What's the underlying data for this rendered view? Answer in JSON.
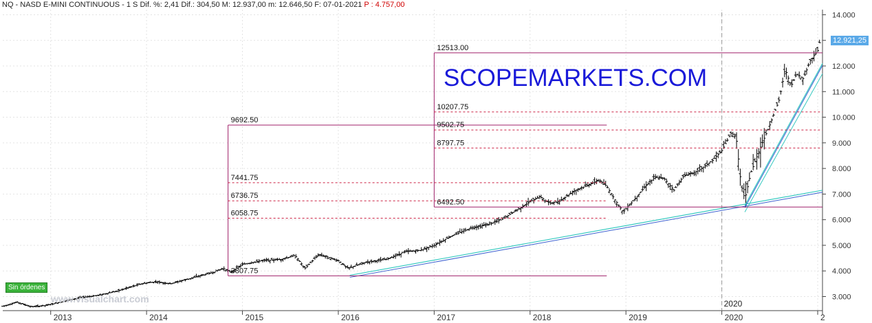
{
  "header": {
    "text": "NQ - NASD E-MINI CONTINUOUS - 1 S  Dif. %: 2,41  Dif.: 304,50  M: 12.937,00  m: 12.646,50  F: 07-01-2021",
    "p_value": "P : 4.757,00"
  },
  "brand": "SCOPEMARKETS.COM",
  "watermark": "www.visualchart.com",
  "badge": "Sin órdenes",
  "last_price": "12.921,25",
  "colors": {
    "candle": "#000000",
    "level_line": "#cc2244",
    "box": "#a0206a",
    "trend_blue": "#3a5fd0",
    "trend_teal": "#36c9c0",
    "grid": "#e3e3e3",
    "axis_text": "#333333",
    "last_price_bg": "#5aa9e8"
  },
  "chart_data": {
    "type": "bar",
    "title": "NQ - NASD E-MINI CONTINUOUS - 1 S",
    "y_axis": {
      "ticks": [
        "14.000",
        "13.000",
        "12.000",
        "11.000",
        "10.000",
        "9.000",
        "8.000",
        "7.000",
        "6.000",
        "5.000",
        "4.000",
        "3.000"
      ],
      "tick_values": [
        14000,
        13000,
        12000,
        11000,
        10000,
        9000,
        8000,
        7000,
        6000,
        5000,
        4000,
        3000
      ],
      "range": [
        2450,
        14200
      ]
    },
    "x_axis": {
      "ticks": [
        "2013",
        "2014",
        "2015",
        "2016",
        "2017",
        "2018",
        "2019",
        "2020",
        "2"
      ],
      "range": [
        2012.5,
        2021.05
      ]
    },
    "price_path": [
      [
        2012.5,
        2620
      ],
      [
        2012.65,
        2780
      ],
      [
        2012.8,
        2600
      ],
      [
        2012.95,
        2650
      ],
      [
        2013.1,
        2780
      ],
      [
        2013.3,
        2950
      ],
      [
        2013.5,
        3050
      ],
      [
        2013.7,
        3220
      ],
      [
        2013.95,
        3500
      ],
      [
        2014.1,
        3580
      ],
      [
        2014.25,
        3500
      ],
      [
        2014.4,
        3650
      ],
      [
        2014.55,
        3800
      ],
      [
        2014.7,
        3950
      ],
      [
        2014.8,
        4100
      ],
      [
        2014.88,
        3950
      ],
      [
        2015.0,
        4250
      ],
      [
        2015.2,
        4400
      ],
      [
        2015.4,
        4450
      ],
      [
        2015.55,
        4600
      ],
      [
        2015.65,
        4100
      ],
      [
        2015.8,
        4650
      ],
      [
        2016.0,
        4400
      ],
      [
        2016.1,
        4100
      ],
      [
        2016.3,
        4350
      ],
      [
        2016.5,
        4450
      ],
      [
        2016.7,
        4750
      ],
      [
        2016.85,
        4800
      ],
      [
        2017.0,
        5000
      ],
      [
        2017.2,
        5400
      ],
      [
        2017.4,
        5700
      ],
      [
        2017.55,
        5800
      ],
      [
        2017.7,
        6000
      ],
      [
        2017.85,
        6350
      ],
      [
        2018.0,
        6700
      ],
      [
        2018.1,
        6900
      ],
      [
        2018.2,
        6650
      ],
      [
        2018.3,
        6700
      ],
      [
        2018.45,
        7100
      ],
      [
        2018.6,
        7350
      ],
      [
        2018.72,
        7550
      ],
      [
        2018.8,
        7300
      ],
      [
        2018.88,
        6800
      ],
      [
        2018.97,
        6300
      ],
      [
        2019.08,
        6750
      ],
      [
        2019.2,
        7300
      ],
      [
        2019.3,
        7650
      ],
      [
        2019.4,
        7600
      ],
      [
        2019.5,
        7150
      ],
      [
        2019.6,
        7700
      ],
      [
        2019.75,
        7900
      ],
      [
        2019.9,
        8300
      ],
      [
        2020.0,
        8700
      ],
      [
        2020.1,
        9400
      ],
      [
        2020.15,
        9200
      ],
      [
        2020.2,
        7400
      ],
      [
        2020.24,
        6800
      ],
      [
        2020.3,
        7800
      ],
      [
        2020.4,
        8800
      ],
      [
        2020.5,
        9700
      ],
      [
        2020.6,
        10700
      ],
      [
        2020.66,
        11900
      ],
      [
        2020.72,
        11200
      ],
      [
        2020.78,
        11700
      ],
      [
        2020.85,
        11500
      ],
      [
        2020.92,
        12200
      ],
      [
        2021.0,
        12600
      ],
      [
        2021.02,
        12921
      ]
    ],
    "levels": [
      {
        "label": "12513.00",
        "value": 12513
      },
      {
        "label": "10207.75",
        "value": 10207.75
      },
      {
        "label": "9502.75",
        "value": 9502.75
      },
      {
        "label": "8797.75",
        "value": 8797.75
      },
      {
        "label": "6492.50",
        "value": 6492.5
      },
      {
        "label": "9692.50",
        "value": 9692.5
      },
      {
        "label": "7441.75",
        "value": 7441.75
      },
      {
        "label": "6736.75",
        "value": 6736.75
      },
      {
        "label": "6058.75",
        "value": 6058.75
      },
      {
        "label": "3807.75",
        "value": 3807.75
      }
    ],
    "annotations": [
      "2020"
    ]
  }
}
